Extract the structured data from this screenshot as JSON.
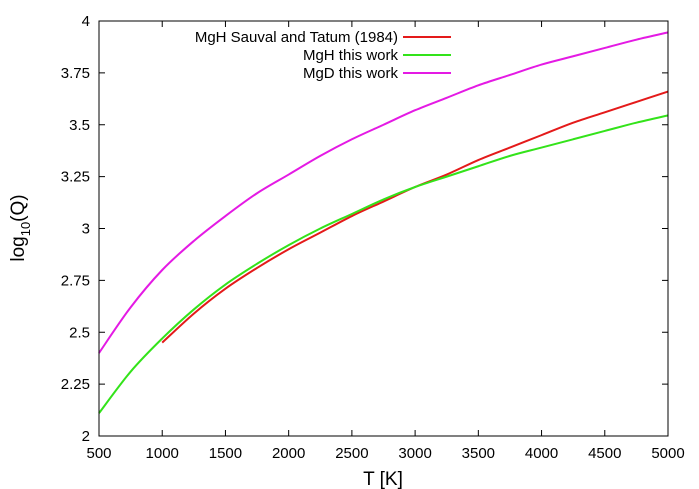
{
  "chart_data": {
    "type": "line",
    "xlabel": "T [K]",
    "ylabel": {
      "base": "log",
      "subscript": "10",
      "suffix": "(Q)"
    },
    "xlim": [
      500,
      5000
    ],
    "ylim": [
      2,
      4
    ],
    "xticks": [
      500,
      1000,
      1500,
      2000,
      2500,
      3000,
      3500,
      4000,
      4500,
      5000
    ],
    "yticks": [
      2,
      2.25,
      2.5,
      2.75,
      3,
      3.25,
      3.5,
      3.75,
      4
    ],
    "ytick_labels": [
      "2",
      "2.25",
      "2.5",
      "2.75",
      "3",
      "3.25",
      "3.5",
      "3.75",
      "4"
    ],
    "grid": false,
    "legend_position": "top-left",
    "series": [
      {
        "name": "MgH Sauval and Tatum (1984)",
        "color": "#e41a1a",
        "x": [
          1000,
          1250,
          1500,
          1750,
          2000,
          2250,
          2500,
          2750,
          3000,
          3250,
          3500,
          3750,
          4000,
          4250,
          4500,
          4750,
          5000
        ],
        "y": [
          2.45,
          2.59,
          2.71,
          2.81,
          2.9,
          2.98,
          3.06,
          3.13,
          3.2,
          3.26,
          3.33,
          3.39,
          3.45,
          3.51,
          3.56,
          3.61,
          3.66
        ]
      },
      {
        "name": "MgH this work",
        "color": "#33e31a",
        "x": [
          500,
          750,
          1000,
          1250,
          1500,
          1750,
          2000,
          2250,
          2500,
          2750,
          3000,
          3250,
          3500,
          3750,
          4000,
          4250,
          4500,
          4750,
          5000
        ],
        "y": [
          2.11,
          2.31,
          2.47,
          2.61,
          2.73,
          2.83,
          2.92,
          3.0,
          3.07,
          3.14,
          3.2,
          3.25,
          3.3,
          3.35,
          3.39,
          3.43,
          3.47,
          3.51,
          3.545
        ]
      },
      {
        "name": "MgD this work",
        "color": "#e41ae4",
        "x": [
          500,
          750,
          1000,
          1250,
          1500,
          1750,
          2000,
          2250,
          2500,
          2750,
          3000,
          3250,
          3500,
          3750,
          4000,
          4250,
          4500,
          4750,
          5000
        ],
        "y": [
          2.4,
          2.62,
          2.8,
          2.94,
          3.06,
          3.17,
          3.26,
          3.35,
          3.43,
          3.5,
          3.57,
          3.63,
          3.69,
          3.74,
          3.79,
          3.83,
          3.87,
          3.91,
          3.945
        ]
      }
    ]
  }
}
